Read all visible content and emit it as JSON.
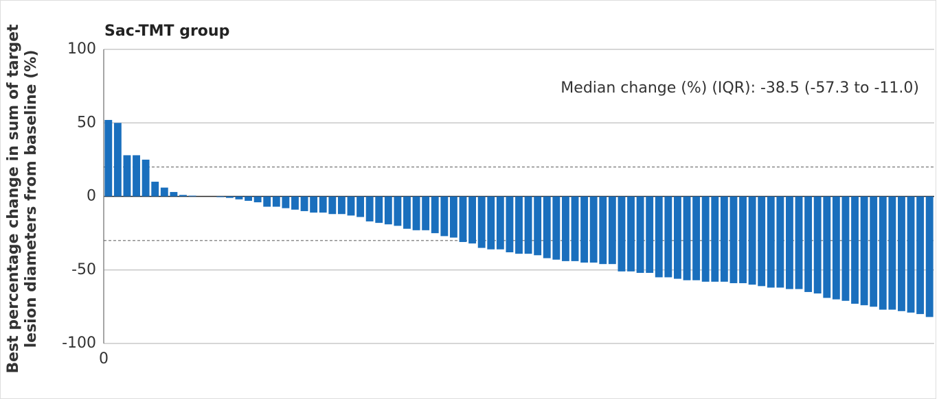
{
  "chart_data": {
    "type": "bar",
    "title": "Sac-TMT group",
    "y_label": [
      "Best percentage change in sum of target",
      "lesion diameters from baseline (%)"
    ],
    "annotation": "Median change (%) (IQR): -38.5 (-57.3 to -11.0)",
    "color": "#1a6fbd",
    "values": [
      52,
      50,
      28,
      28,
      25,
      10,
      6,
      3,
      1,
      0.5,
      0,
      0,
      -0.5,
      -1,
      -2,
      -3,
      -4,
      -7,
      -7,
      -8,
      -9,
      -10,
      -11,
      -11,
      -12,
      -12,
      -13,
      -14,
      -17,
      -18,
      -19,
      -20,
      -22,
      -23,
      -23,
      -25,
      -27,
      -28,
      -31,
      -32,
      -35,
      -36,
      -36,
      -38,
      -39,
      -39,
      -40,
      -42,
      -43,
      -44,
      -44,
      -45,
      -45,
      -46,
      -46,
      -51,
      -51,
      -52,
      -52,
      -55,
      -55,
      -56,
      -57,
      -57,
      -58,
      -58,
      -58,
      -59,
      -59,
      -60,
      -61,
      -62,
      -62,
      -63,
      -63,
      -65,
      -66,
      -69,
      -70,
      -71,
      -73,
      -74,
      -75,
      -77,
      -77,
      -78,
      -79,
      -80,
      -82
    ],
    "xlim": [
      0,
      89
    ],
    "xticks": [
      0
    ],
    "ylim": [
      -100,
      100
    ],
    "yticks": [
      -100,
      -50,
      0,
      50,
      100
    ],
    "reference_lines": [
      20,
      -30
    ],
    "grid": true
  }
}
